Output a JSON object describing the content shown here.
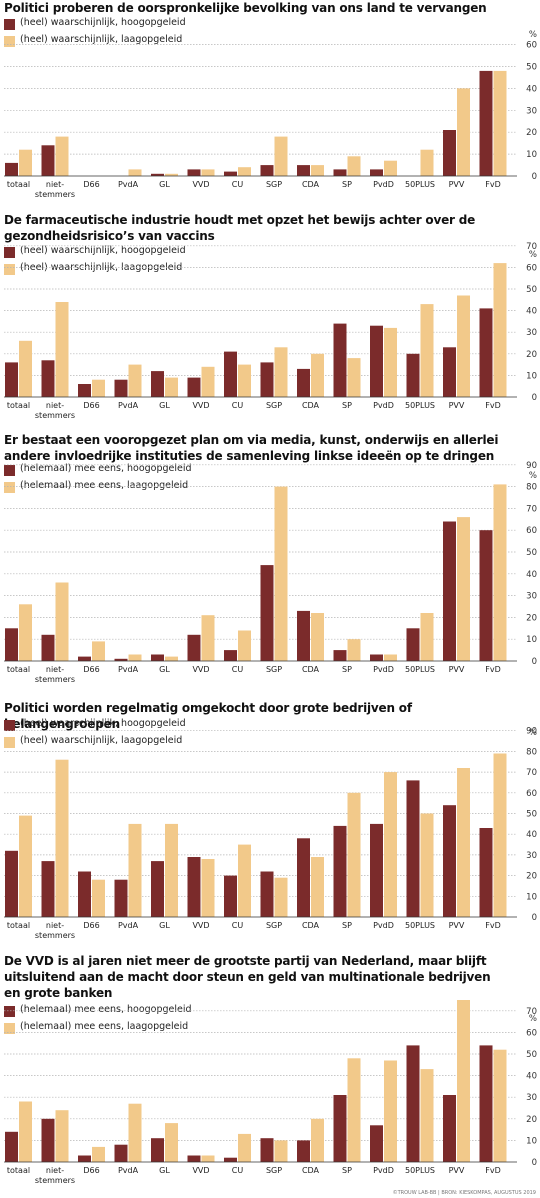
{
  "colors": {
    "hoog": "#7b2b2b",
    "laag": "#f2c98a",
    "grid": "#b5b5b5",
    "axis": "#333333"
  },
  "source": "©TROUW LAB-BB | BRON: KIESKOMPAS, AUGUSTUS 2019",
  "charts": [
    {
      "title": "Politici proberen de oorspronkelijke bevolking van ons land te vervangen",
      "legend": [
        "(heel) waarschijnlijk, hoogopgeleid",
        "(heel) waarschijnlijk, laagopgeleid"
      ],
      "unit": "%"
    },
    {
      "title": "De farmaceutische industrie houdt met opzet het bewijs achter over de gezondheidsrisico’s van vaccins",
      "legend": [
        "(heel) waarschijnlijk, hoogopgeleid",
        "(heel) waarschijnlijk, laagopgeleid"
      ],
      "unit": "%"
    },
    {
      "title": "Er bestaat een vooropgezet plan om via media, kunst, onderwijs en allerlei andere invloedrijke instituties de samenleving linkse ideeën op te dringen",
      "legend": [
        "(helemaal) mee eens, hoogopgeleid",
        "(helemaal) mee eens, laagopgeleid"
      ],
      "unit": "%"
    },
    {
      "title": "Politici worden regelmatig omgekocht door grote bedrijven of belangengroepen",
      "legend": [
        "(heel) waarschijnlijk, hoogopgeleid",
        "(heel) waarschijnlijk, laagopgeleid"
      ],
      "unit": "%"
    },
    {
      "title": "De VVD is al jaren niet meer de grootste partij van Nederland, maar blijft uitsluitend aan de macht door steun en geld van multinationale bedrijven en grote banken",
      "legend": [
        "(helemaal) mee eens, hoogopgeleid",
        "(helemaal) mee eens, laagopgeleid"
      ],
      "unit": "%"
    }
  ],
  "chart_data": [
    {
      "type": "bar",
      "title": "Politici proberen de oorspronkelijke bevolking van ons land te vervangen",
      "categories": [
        "totaal",
        "niet-\nstemmers",
        "D66",
        "PvdA",
        "GL",
        "VVD",
        "CU",
        "SGP",
        "CDA",
        "SP",
        "PvdD",
        "50PLUS",
        "PVV",
        "FvD"
      ],
      "series": [
        {
          "name": "(heel) waarschijnlijk, hoogopgeleid",
          "values": [
            6,
            14,
            0,
            0,
            1,
            3,
            2,
            5,
            5,
            3,
            3,
            0,
            21,
            48
          ]
        },
        {
          "name": "(heel) waarschijnlijk, laagopgeleid",
          "values": [
            12,
            18,
            0,
            3,
            1,
            3,
            4,
            18,
            5,
            9,
            7,
            12,
            40,
            48
          ]
        }
      ],
      "ylim": [
        0,
        60
      ],
      "yticks": [
        0,
        10,
        20,
        30,
        40,
        50,
        60
      ],
      "grid": true,
      "legend_position": "top-left"
    },
    {
      "type": "bar",
      "title": "De farmaceutische industrie houdt met opzet het bewijs achter over de gezondheidsrisico’s van vaccins",
      "categories": [
        "totaal",
        "niet-\nstemmers",
        "D66",
        "PvdA",
        "GL",
        "VVD",
        "CU",
        "SGP",
        "CDA",
        "SP",
        "PvdD",
        "50PLUS",
        "PVV",
        "FvD"
      ],
      "series": [
        {
          "name": "(heel) waarschijnlijk, hoogopgeleid",
          "values": [
            16,
            17,
            6,
            8,
            12,
            9,
            21,
            16,
            13,
            34,
            33,
            20,
            23,
            41
          ]
        },
        {
          "name": "(heel) waarschijnlijk, laagopgeleid",
          "values": [
            26,
            44,
            8,
            15,
            9,
            14,
            15,
            23,
            20,
            18,
            32,
            43,
            47,
            62
          ]
        }
      ],
      "ylim": [
        0,
        70
      ],
      "yticks": [
        0,
        10,
        20,
        30,
        40,
        50,
        60,
        70
      ],
      "grid": true,
      "legend_position": "top-left"
    },
    {
      "type": "bar",
      "title": "Er bestaat een vooropgezet plan om via media, kunst, onderwijs en allerlei andere invloedrijke instituties de samenleving linkse ideeën op te dringen",
      "categories": [
        "totaal",
        "niet-\nstemmers",
        "D66",
        "PvdA",
        "GL",
        "VVD",
        "CU",
        "SGP",
        "CDA",
        "SP",
        "PvdD",
        "50PLUS",
        "PVV",
        "FvD"
      ],
      "series": [
        {
          "name": "(helemaal) mee eens, hoogopgeleid",
          "values": [
            15,
            12,
            2,
            1,
            3,
            12,
            5,
            44,
            23,
            5,
            3,
            15,
            64,
            60
          ]
        },
        {
          "name": "(helemaal) mee eens, laagopgeleid",
          "values": [
            26,
            36,
            9,
            3,
            2,
            21,
            14,
            80,
            22,
            10,
            3,
            22,
            66,
            81
          ]
        }
      ],
      "ylim": [
        0,
        90
      ],
      "yticks": [
        0,
        10,
        20,
        30,
        40,
        50,
        60,
        70,
        80,
        90
      ],
      "grid": true,
      "legend_position": "top-left"
    },
    {
      "type": "bar",
      "title": "Politici worden regelmatig omgekocht door grote bedrijven of belangengroepen",
      "categories": [
        "totaal",
        "niet-\nstemmers",
        "D66",
        "PvdA",
        "GL",
        "VVD",
        "CU",
        "SGP",
        "CDA",
        "SP",
        "PvdD",
        "50PLUS",
        "PVV",
        "FvD"
      ],
      "series": [
        {
          "name": "(heel) waarschijnlijk, hoogopgeleid",
          "values": [
            32,
            27,
            22,
            18,
            27,
            29,
            20,
            22,
            38,
            44,
            45,
            66,
            54,
            43
          ]
        },
        {
          "name": "(heel) waarschijnlijk, laagopgeleid",
          "values": [
            49,
            76,
            18,
            45,
            45,
            28,
            35,
            19,
            29,
            60,
            70,
            50,
            72,
            79
          ]
        }
      ],
      "ylim": [
        0,
        90
      ],
      "yticks": [
        0,
        10,
        20,
        30,
        40,
        50,
        60,
        70,
        80,
        90
      ],
      "grid": true,
      "legend_position": "top-left"
    },
    {
      "type": "bar",
      "title": "De VVD is al jaren niet meer de grootste partij van Nederland, maar blijft uitsluitend aan de macht door steun en geld van multinationale bedrijven en grote banken",
      "categories": [
        "totaal",
        "niet-\nstemmers",
        "D66",
        "PvdA",
        "GL",
        "VVD",
        "CU",
        "SGP",
        "CDA",
        "SP",
        "PvdD",
        "50PLUS",
        "PVV",
        "FvD"
      ],
      "series": [
        {
          "name": "(helemaal) mee eens, hoogopgeleid",
          "values": [
            14,
            20,
            3,
            8,
            11,
            3,
            2,
            11,
            10,
            31,
            17,
            54,
            31,
            54
          ]
        },
        {
          "name": "(helemaal) mee eens, laagopgeleid",
          "values": [
            28,
            24,
            7,
            27,
            18,
            3,
            13,
            10,
            20,
            48,
            47,
            43,
            75,
            52
          ]
        }
      ],
      "ylim": [
        0,
        70
      ],
      "yticks": [
        0,
        10,
        20,
        30,
        40,
        50,
        60,
        70
      ],
      "grid": true,
      "legend_position": "top-left"
    }
  ]
}
